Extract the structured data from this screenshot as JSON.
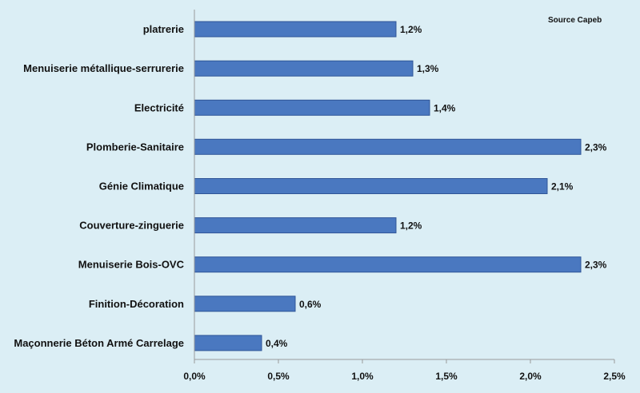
{
  "chart_data": {
    "type": "bar",
    "orientation": "horizontal",
    "categories": [
      "platrerie",
      "Menuiserie métallique-serrurerie",
      "Electricité",
      "Plomberie-Sanitaire",
      "Génie Climatique",
      "Couverture-zinguerie",
      "Menuiserie Bois-OVC",
      "Finition-Décoration",
      "Maçonnerie Béton Armé Carrelage"
    ],
    "values": [
      1.2,
      1.3,
      1.4,
      2.3,
      2.1,
      1.2,
      2.3,
      0.6,
      0.4
    ],
    "data_labels": [
      "1,2%",
      "1,3%",
      "1,4%",
      "2,3%",
      "2,1%",
      "1,2%",
      "2,3%",
      "0,6%",
      "0,4%"
    ],
    "xlim": [
      0,
      2.5
    ],
    "x_ticks": [
      0,
      0.5,
      1.0,
      1.5,
      2.0,
      2.5
    ],
    "x_tick_labels": [
      "0,0%",
      "0,5%",
      "1,0%",
      "1,5%",
      "2,0%",
      "2,5%"
    ],
    "x_unit": "%",
    "annotation": "Source Capeb",
    "grid": false,
    "legend": "none",
    "bar_color": "#4a78c0",
    "bar_stroke": "#2f5597",
    "axis_color": "#9a9a9a",
    "background": "#dbeef5"
  }
}
